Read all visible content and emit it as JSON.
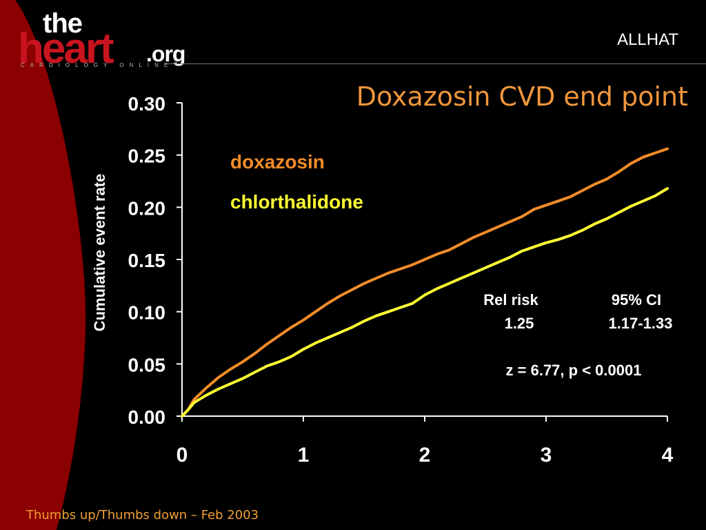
{
  "slide": {
    "logo": {
      "the": "the",
      "heart": "heart",
      "org": ".org",
      "tagline": "CARDIOLOGY ONLINE"
    },
    "study": "ALLHAT",
    "title": "Doxazosin CVD end point",
    "footer": "Thumbs up/Thumbs down – Feb 2003",
    "colors": {
      "background": "#000000",
      "decor_red": "#8b0000",
      "title": "#f0963c",
      "doxazosin": "#f28c28",
      "chlorthalidone": "#ffff33",
      "footer": "#f0a030"
    }
  },
  "chart_data": {
    "type": "line",
    "title": "",
    "xlabel": "",
    "ylabel": "Cumulative event rate",
    "xlim": [
      0,
      4
    ],
    "ylim": [
      0,
      0.3
    ],
    "x_ticks": [
      "0",
      "1",
      "2",
      "3",
      "4"
    ],
    "y_ticks": [
      "0.00",
      "0.05",
      "0.10",
      "0.15",
      "0.20",
      "0.25",
      "0.30"
    ],
    "grid": false,
    "legend_position": "top-left",
    "series": [
      {
        "name": "doxazosin",
        "color": "#f28c28",
        "points": [
          [
            0,
            0
          ],
          [
            0.05,
            0.006
          ],
          [
            0.1,
            0.016
          ],
          [
            0.2,
            0.027
          ],
          [
            0.3,
            0.037
          ],
          [
            0.4,
            0.045
          ],
          [
            0.5,
            0.052
          ],
          [
            0.6,
            0.06
          ],
          [
            0.7,
            0.069
          ],
          [
            0.8,
            0.077
          ],
          [
            0.9,
            0.085
          ],
          [
            1.0,
            0.092
          ],
          [
            1.1,
            0.1
          ],
          [
            1.2,
            0.108
          ],
          [
            1.3,
            0.115
          ],
          [
            1.4,
            0.121
          ],
          [
            1.5,
            0.127
          ],
          [
            1.6,
            0.132
          ],
          [
            1.7,
            0.137
          ],
          [
            1.8,
            0.141
          ],
          [
            1.9,
            0.145
          ],
          [
            2.0,
            0.15
          ],
          [
            2.1,
            0.155
          ],
          [
            2.2,
            0.159
          ],
          [
            2.3,
            0.165
          ],
          [
            2.4,
            0.171
          ],
          [
            2.5,
            0.176
          ],
          [
            2.6,
            0.181
          ],
          [
            2.7,
            0.186
          ],
          [
            2.8,
            0.191
          ],
          [
            2.9,
            0.198
          ],
          [
            3.0,
            0.202
          ],
          [
            3.1,
            0.206
          ],
          [
            3.2,
            0.21
          ],
          [
            3.3,
            0.216
          ],
          [
            3.4,
            0.222
          ],
          [
            3.5,
            0.227
          ],
          [
            3.6,
            0.234
          ],
          [
            3.7,
            0.242
          ],
          [
            3.8,
            0.248
          ],
          [
            3.9,
            0.252
          ],
          [
            4.0,
            0.256
          ]
        ]
      },
      {
        "name": "chlorthalidone",
        "color": "#ffff33",
        "points": [
          [
            0,
            0
          ],
          [
            0.05,
            0.006
          ],
          [
            0.1,
            0.013
          ],
          [
            0.2,
            0.02
          ],
          [
            0.3,
            0.026
          ],
          [
            0.4,
            0.031
          ],
          [
            0.5,
            0.036
          ],
          [
            0.6,
            0.042
          ],
          [
            0.7,
            0.048
          ],
          [
            0.8,
            0.052
          ],
          [
            0.9,
            0.057
          ],
          [
            1.0,
            0.064
          ],
          [
            1.1,
            0.07
          ],
          [
            1.2,
            0.075
          ],
          [
            1.3,
            0.08
          ],
          [
            1.4,
            0.085
          ],
          [
            1.5,
            0.091
          ],
          [
            1.6,
            0.096
          ],
          [
            1.7,
            0.1
          ],
          [
            1.8,
            0.104
          ],
          [
            1.9,
            0.108
          ],
          [
            2.0,
            0.116
          ],
          [
            2.1,
            0.122
          ],
          [
            2.2,
            0.127
          ],
          [
            2.3,
            0.132
          ],
          [
            2.4,
            0.137
          ],
          [
            2.5,
            0.142
          ],
          [
            2.6,
            0.147
          ],
          [
            2.7,
            0.152
          ],
          [
            2.8,
            0.158
          ],
          [
            2.9,
            0.162
          ],
          [
            3.0,
            0.166
          ],
          [
            3.1,
            0.169
          ],
          [
            3.2,
            0.173
          ],
          [
            3.3,
            0.178
          ],
          [
            3.4,
            0.184
          ],
          [
            3.5,
            0.189
          ],
          [
            3.6,
            0.195
          ],
          [
            3.7,
            0.201
          ],
          [
            3.8,
            0.206
          ],
          [
            3.9,
            0.211
          ],
          [
            4.0,
            0.218
          ]
        ]
      }
    ],
    "annotations": {
      "rel_risk_label": "Rel risk",
      "rel_risk_value": "1.25",
      "ci_label": "95% CI",
      "ci_value": "1.17-1.33",
      "stats": "z = 6.77,  p < 0.0001"
    }
  }
}
